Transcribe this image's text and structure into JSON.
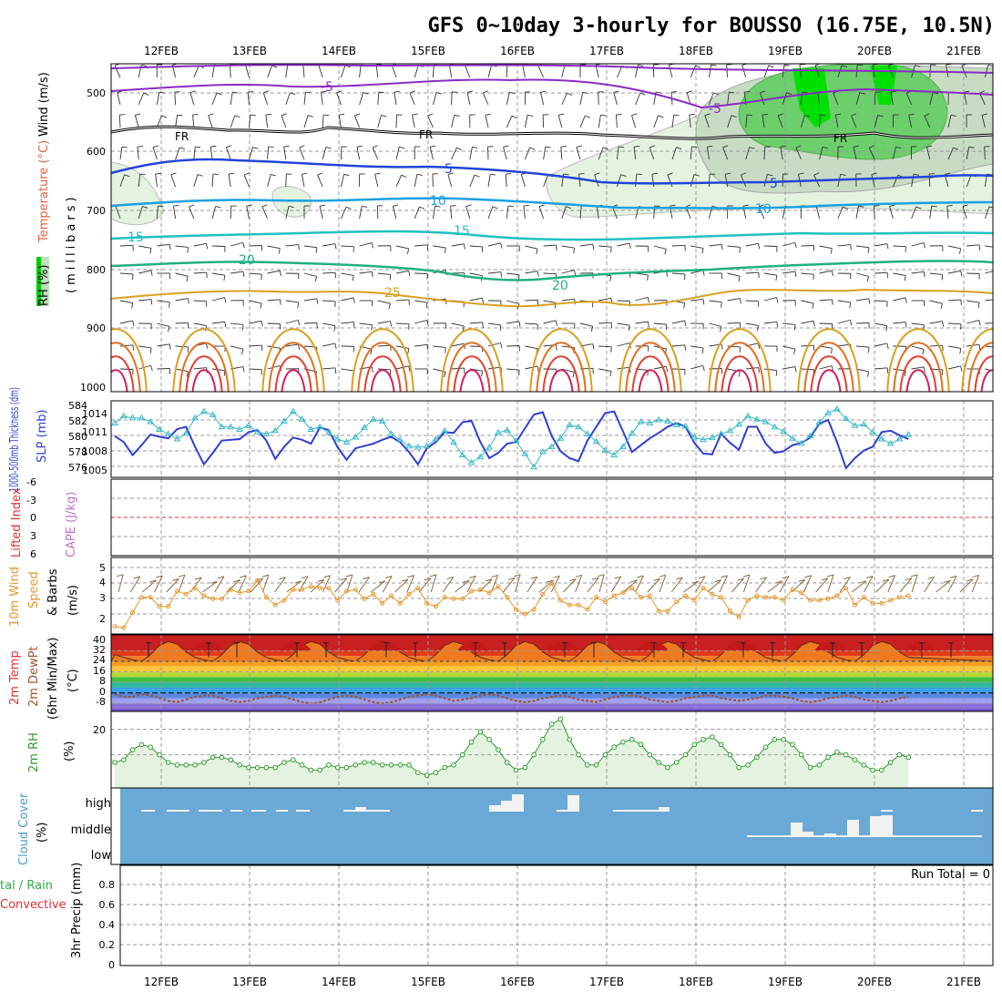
{
  "title": "GFS 0~10day 3-hourly for BOUSSO (16.75E, 10.5N)",
  "dates": [
    "12FEB",
    "13FEB",
    "14FEB",
    "15FEB",
    "16FEB",
    "17FEB",
    "18FEB",
    "19FEB",
    "20FEB",
    "21FEB"
  ],
  "colors": {
    "grid": "#9a9a9a",
    "cloud_bg": "#6aa9d6",
    "thickness": "#2f3fd0",
    "slp": "#33b8c8",
    "wind10m": "#e8962a",
    "rh2m": "#2e9a2e",
    "rh_fill": "#e4f2e0",
    "precip_total": "#2ea84a",
    "precip_conv": "#e03030"
  },
  "panels": {
    "upper": {
      "label_rh": "RH (%)",
      "label_temp": "Temperature (°C)",
      "label_wind": "Wind (m/s)",
      "label_mb": "(millibars)",
      "yticks": [
        "500",
        "600",
        "700",
        "800",
        "900",
        "1000"
      ],
      "contour_labels": [
        "-5",
        "-5",
        "FR",
        "FR",
        "FR",
        "5",
        "5",
        "10",
        "10",
        "15",
        "15",
        "20",
        "20",
        "25"
      ]
    },
    "slp": {
      "label_thick": "1000-500mb Thickness (dm)",
      "label_slp": "SLP (mb)",
      "left_ticks": [
        "584",
        "582",
        "580",
        "578",
        "576"
      ],
      "right_ticks": [
        "1014",
        "1011",
        "1008",
        "1005"
      ]
    },
    "cape": {
      "label_li": "Lifted Index",
      "label_cape": "CAPE (J/kg)",
      "yticks": [
        "-6",
        "-3",
        "0",
        "3",
        "6"
      ]
    },
    "wind": {
      "label_a": "10m Wind",
      "label_b": "Speed",
      "label_c": "& Barbs",
      "label_units": "(m/s)",
      "yticks": [
        "5",
        "4",
        "3",
        "2"
      ]
    },
    "temp": {
      "label_a": "2m Temp",
      "label_b": "2m DewPt",
      "label_c": "(6hr Min/Max)",
      "label_units": "(°C)",
      "yticks": [
        "40",
        "32",
        "24",
        "16",
        "8",
        "0",
        "-8"
      ]
    },
    "rh": {
      "label_a": "2m RH",
      "label_units": "(%)",
      "yticks": [
        "20"
      ]
    },
    "cloud": {
      "label_a": "Cloud Cover",
      "label_units": "(%)",
      "levels": [
        "high",
        "middle",
        "low"
      ]
    },
    "precip": {
      "label_a": "tal / Rain",
      "label_b": "Convective",
      "label_c": "3hr Precip (mm)",
      "run_total": "Run Total = 0",
      "yticks": [
        "0.8",
        "0.6",
        "0.4",
        "0.2",
        "0"
      ]
    }
  },
  "chart_data": [
    {
      "type": "line",
      "title": "1000-500mb Thickness (dm) / SLP (mb)",
      "series": [
        {
          "name": "1000-500mb Thickness (dm)",
          "values": [
            580.4,
            579.6,
            577.9,
            579.2,
            580.6,
            580.3,
            580.1,
            581.3,
            581.6,
            579.0,
            576.7,
            578.2,
            579.8,
            579.9,
            580.0,
            580.9,
            581.2,
            579.8,
            577.4,
            579.0,
            580.2,
            579.9,
            579.4,
            581.5,
            581.2,
            578.9,
            577.3,
            578.8,
            579.1,
            579.4,
            579.9,
            580.3,
            579.6,
            578.3,
            576.7,
            578.8,
            579.6,
            580.9,
            580.8,
            582.2,
            582.4,
            579.6,
            577.5,
            578.2,
            579.4,
            579.6,
            581.4,
            583.2,
            583.5,
            580.4,
            578.4,
            577.5,
            577.1,
            579.8,
            581.6,
            583.4,
            583.6,
            581.0,
            578.3,
            579.2,
            580.1,
            580.8,
            581.6,
            582.1,
            581.6,
            579.5,
            578.1,
            578.0,
            580.7,
            579.5,
            578.6,
            581.6,
            581.6,
            579.4,
            578.2,
            578.4,
            579.2,
            579.5,
            580.2,
            582.0,
            582.5,
            579.6,
            576.2,
            577.5,
            578.5,
            579.0,
            580.9,
            581.1,
            580.5,
            580.0
          ]
        },
        {
          "name": "SLP (mb)",
          "values": [
            1012.0,
            1013.1,
            1012.8,
            1012.8,
            1012.2,
            1011.0,
            1010.3,
            1009.5,
            1010.4,
            1012.8,
            1013.8,
            1013.3,
            1011.4,
            1011.4,
            1011.0,
            1011.6,
            1010.6,
            1010.3,
            1010.8,
            1012.3,
            1013.8,
            1012.6,
            1011.0,
            1011.4,
            1010.5,
            1009.5,
            1009.0,
            1009.8,
            1011.3,
            1012.6,
            1012.3,
            1010.3,
            1009.4,
            1008.4,
            1008.2,
            1008.4,
            1009.5,
            1010.8,
            1009.0,
            1007.0,
            1005.8,
            1006.7,
            1008.2,
            1010.5,
            1010.9,
            1009.2,
            1007.2,
            1005.1,
            1007.5,
            1008.3,
            1009.6,
            1011.7,
            1011.4,
            1010.3,
            1009.1,
            1007.7,
            1007.0,
            1008.3,
            1010.4,
            1012.2,
            1012.0,
            1012.5,
            1012.3,
            1011.7,
            1011.5,
            1009.8,
            1009.4,
            1009.7,
            1010.3,
            1010.8,
            1011.8,
            1013.1,
            1012.6,
            1012.2,
            1011.4,
            1010.7,
            1009.6,
            1008.8,
            1010.0,
            1012.1,
            1013.6,
            1014.2,
            1012.7,
            1011.6,
            1011.8,
            1010.6,
            1009.5,
            1008.8,
            1009.5,
            1010.2
          ]
        }
      ],
      "left_ylim": [
        575,
        585
      ],
      "right_ylim": [
        1003.5,
        1015.5
      ]
    },
    {
      "type": "line",
      "title": "Lifted Index / CAPE (J/kg)",
      "series": [
        {
          "name": "Lifted Index",
          "values": [
            0,
            0,
            0,
            0,
            0,
            0,
            0,
            0,
            0,
            0
          ]
        }
      ],
      "ylim": [
        -6,
        6
      ]
    },
    {
      "type": "line",
      "title": "10m Wind Speed (m/s)",
      "series": [
        {
          "name": "10m Wind Speed",
          "values": [
            1.5,
            1.4,
            2.4,
            3.4,
            3.4,
            2.8,
            2.8,
            3.8,
            3.6,
            4.0,
            3.5,
            3.3,
            3.3,
            3.9,
            3.7,
            3.8,
            4.5,
            3.4,
            2.9,
            3.2,
            3.9,
            3.9,
            4.1,
            4.0,
            4.0,
            3.2,
            3.8,
            3.9,
            3.3,
            3.6,
            3.0,
            3.5,
            3.0,
            3.6,
            4.0,
            3.0,
            2.8,
            3.4,
            3.3,
            3.3,
            3.8,
            3.9,
            3.7,
            4.1,
            3.4,
            2.6,
            2.3,
            2.6,
            3.6,
            4.3,
            3.2,
            2.9,
            2.9,
            2.6,
            3.4,
            3.1,
            3.5,
            3.7,
            4.0,
            3.4,
            3.5,
            2.5,
            2.5,
            3.1,
            3.5,
            3.2,
            4.0,
            3.6,
            3.4,
            2.5,
            2.1,
            3.2,
            3.5,
            3.4,
            3.4,
            3.2,
            3.9,
            3.7,
            3.2,
            3.2,
            3.3,
            3.5,
            4.0,
            2.9,
            3.4,
            3.0,
            3.0,
            3.2,
            3.4,
            3.5
          ]
        }
      ],
      "ylim": [
        1,
        6
      ]
    },
    {
      "type": "area",
      "title": "2m Temp / 2m DewPt (°C)",
      "series": [
        {
          "name": "2m Temp",
          "values": [
            29,
            27,
            25,
            24,
            29,
            36,
            39,
            37,
            31,
            27,
            25,
            24,
            29,
            36,
            39,
            37,
            31,
            27,
            25,
            24,
            29,
            36,
            39,
            37,
            31,
            27,
            25,
            24,
            29,
            36,
            39,
            37,
            31,
            27,
            25,
            24,
            29,
            36,
            39,
            37,
            31,
            27,
            25,
            24,
            29,
            36,
            39,
            37,
            31,
            27,
            25,
            24,
            29,
            36,
            39,
            37,
            31,
            27,
            25,
            24,
            29,
            36,
            39,
            37,
            31,
            27,
            25,
            24,
            29,
            36,
            39,
            37,
            31,
            27,
            25,
            24,
            29,
            36,
            39,
            37,
            31,
            27,
            25,
            24,
            29,
            36,
            39,
            37,
            31,
            27
          ]
        },
        {
          "name": "2m DewPt",
          "values": [
            -1,
            -3,
            -3,
            -1,
            -2,
            -4,
            -6,
            -7,
            -5,
            -3,
            -2,
            -2,
            -4,
            -6,
            -7,
            -6,
            -4,
            -3,
            -2,
            -3,
            -5,
            -7,
            -8,
            -7,
            -5,
            -3,
            -2,
            -3,
            -5,
            -7,
            -8,
            -7,
            -5,
            -3,
            -2,
            -1,
            -2,
            -4,
            -6,
            -5,
            -4,
            -2,
            -1,
            -2,
            -4,
            -6,
            -7,
            -6,
            -4,
            -3,
            -2,
            -3,
            -5,
            -6,
            -7,
            -5,
            -3,
            -2,
            -2,
            -3,
            -5,
            -6,
            -7,
            -6,
            -4,
            -3,
            -2,
            -2,
            -4,
            -5,
            -6,
            -5,
            -4,
            -2,
            -2,
            -3,
            -4,
            -6,
            -7,
            -6,
            -4,
            -3,
            -2,
            -3,
            -5,
            -6,
            -7,
            -6,
            -4,
            -3
          ]
        }
      ],
      "ylim": [
        -14,
        44
      ]
    },
    {
      "type": "area",
      "title": "2m RH (%)",
      "series": [
        {
          "name": "2m RH",
          "values": [
            7,
            8,
            12,
            14,
            13,
            10,
            7,
            6,
            6,
            6,
            7,
            9,
            9,
            8,
            6,
            5,
            5,
            5,
            5,
            7,
            8,
            6,
            4,
            4,
            6,
            5,
            5,
            6,
            7,
            7,
            6,
            6,
            6,
            6,
            3,
            2,
            3,
            5,
            6,
            10,
            15,
            19,
            16,
            12,
            7,
            4,
            5,
            10,
            16,
            22,
            24,
            16,
            10,
            6,
            6,
            10,
            13,
            15,
            16,
            14,
            10,
            7,
            5,
            7,
            10,
            14,
            16,
            17,
            14,
            10,
            5,
            6,
            9,
            13,
            16,
            16,
            14,
            10,
            5,
            6,
            9,
            11,
            10,
            8,
            6,
            4,
            4,
            7,
            10,
            9
          ]
        }
      ],
      "ylim": [
        -3,
        27
      ]
    },
    {
      "type": "bar",
      "title": "Cloud Cover (%)",
      "series": [
        {
          "name": "high",
          "values": [
            0,
            0,
            0,
            0,
            0,
            0,
            0,
            0,
            0,
            0
          ]
        },
        {
          "name": "middle",
          "values": [
            0,
            0,
            0,
            0,
            0,
            0,
            0,
            0,
            0,
            0
          ]
        },
        {
          "name": "low",
          "values": [
            0,
            0,
            0,
            0,
            0,
            0,
            0,
            0,
            0,
            0
          ]
        }
      ]
    },
    {
      "type": "bar",
      "title": "3hr Precip (mm)",
      "series": [
        {
          "name": "3hr Precip",
          "values": [
            0,
            0,
            0,
            0,
            0,
            0,
            0,
            0,
            0,
            0
          ]
        }
      ],
      "ylim": [
        0,
        1
      ]
    }
  ]
}
